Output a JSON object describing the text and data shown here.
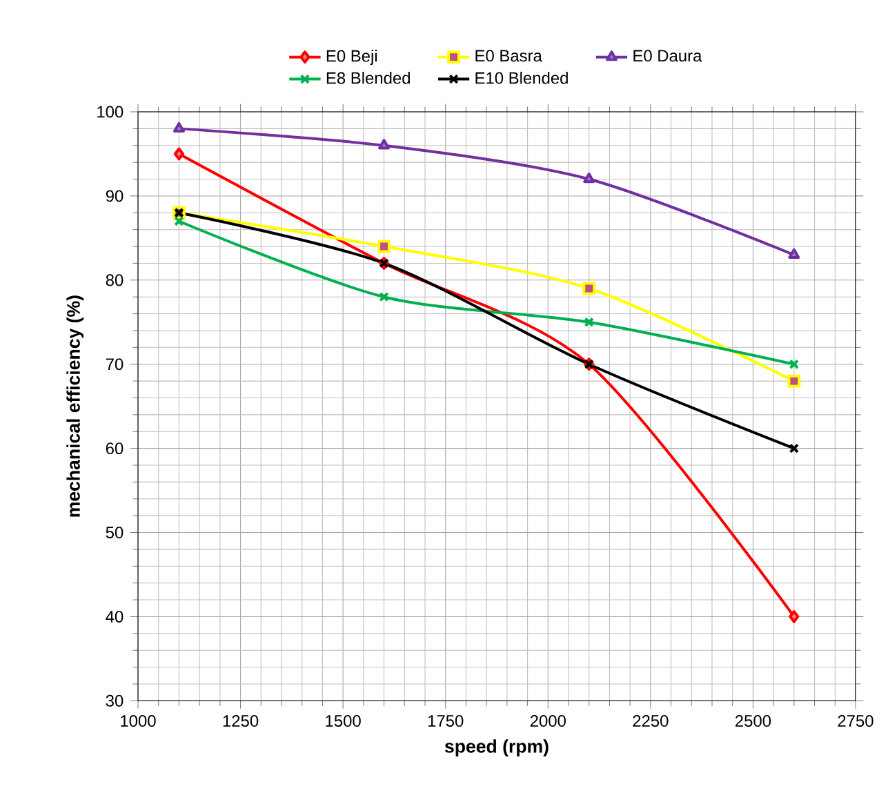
{
  "chart_data": {
    "type": "line",
    "xlabel": "speed (rpm)",
    "ylabel": "mechanical efficiency (%)",
    "x": [
      1100,
      1600,
      2100,
      2600
    ],
    "series": [
      {
        "name": "E0 Beji",
        "color": "#ff0000",
        "marker": "diamond",
        "values": [
          95,
          82,
          70,
          40
        ]
      },
      {
        "name": "E0 Basra",
        "color": "#ffff00",
        "marker": "square",
        "values": [
          88,
          84,
          79,
          68
        ]
      },
      {
        "name": "E0 Daura",
        "color": "#7030a0",
        "marker": "triangle",
        "values": [
          98,
          96,
          92,
          83
        ]
      },
      {
        "name": "E8 Blended",
        "color": "#00b050",
        "marker": "cross",
        "values": [
          87,
          78,
          75,
          70
        ]
      },
      {
        "name": "E10 Blended",
        "color": "#000000",
        "marker": "cross",
        "values": [
          88,
          82,
          70,
          60
        ]
      }
    ],
    "xlim": [
      1000,
      2750
    ],
    "xticks": [
      1000,
      1250,
      1500,
      1750,
      2000,
      2250,
      2500,
      2750
    ],
    "ylim": [
      30,
      100
    ],
    "yticks": [
      30,
      40,
      50,
      60,
      70,
      80,
      90,
      100
    ],
    "grid": true,
    "legend": "top"
  }
}
